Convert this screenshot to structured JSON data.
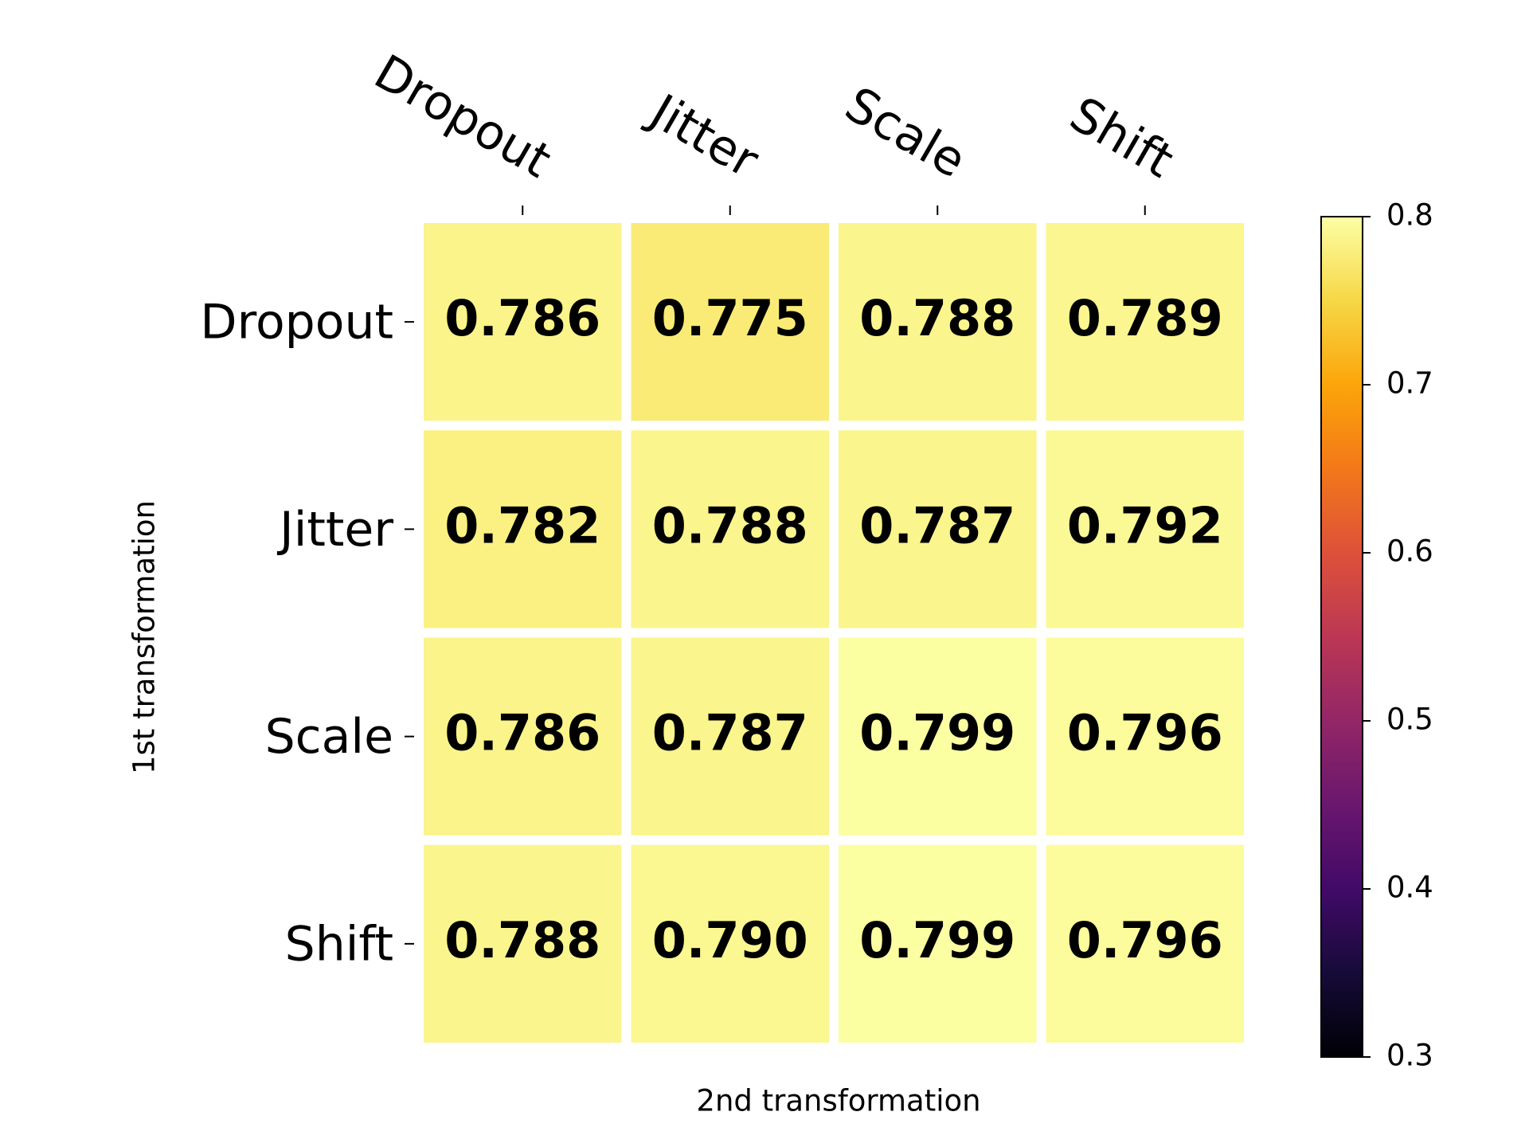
{
  "chart_data": {
    "type": "heatmap",
    "x_label": "2nd transformation",
    "y_label": "1st transformation",
    "x_categories": [
      "Dropout",
      "Jitter",
      "Scale",
      "Shift"
    ],
    "y_categories": [
      "Dropout",
      "Jitter",
      "Scale",
      "Shift"
    ],
    "values": [
      [
        0.786,
        0.775,
        0.788,
        0.789
      ],
      [
        0.782,
        0.788,
        0.787,
        0.792
      ],
      [
        0.786,
        0.787,
        0.799,
        0.796
      ],
      [
        0.788,
        0.79,
        0.799,
        0.796
      ]
    ],
    "value_labels": [
      [
        "0.786",
        "0.775",
        "0.788",
        "0.789"
      ],
      [
        "0.782",
        "0.788",
        "0.787",
        "0.792"
      ],
      [
        "0.786",
        "0.787",
        "0.799",
        "0.796"
      ],
      [
        "0.788",
        "0.790",
        "0.799",
        "0.796"
      ]
    ],
    "colormap": "inferno",
    "clim": [
      0.3,
      0.8
    ],
    "cticks": [
      0.3,
      0.4,
      0.5,
      0.6,
      0.7,
      0.8
    ]
  }
}
